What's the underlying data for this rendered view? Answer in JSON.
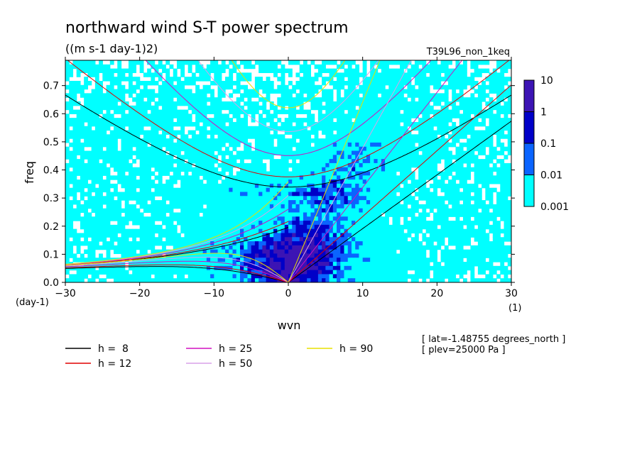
{
  "chart_data": {
    "type": "heatmap",
    "title": "northward wind S-T power spectrum",
    "units": "((m s-1 day-1)2)",
    "dataset": "T39L96_non_1keq",
    "xlabel": "wvn",
    "ylabel": "freq",
    "x_units": "(1)",
    "y_units": "(day-1)",
    "xlim": [
      -30,
      30
    ],
    "ylim": [
      0,
      0.79
    ],
    "x_ticks": [
      "-30",
      "-20",
      "-10",
      "0",
      "10",
      "20",
      "30"
    ],
    "y_ticks": [
      "0.0",
      "0.1",
      "0.2",
      "0.3",
      "0.4",
      "0.5",
      "0.6",
      "0.7"
    ],
    "colorbar": {
      "levels": [
        "0.001",
        "0.01",
        "0.1",
        "1",
        "10"
      ],
      "colors": [
        "#00ffff",
        "#0a64ff",
        "#0000c8",
        "#3c14b4"
      ],
      "below_min_color": "#ffffff"
    },
    "dispersion_curves": [
      {
        "label": "h =  8",
        "h": 8,
        "color": "#000000"
      },
      {
        "label": "h = 12",
        "h": 12,
        "color": "#e00000"
      },
      {
        "label": "h = 25",
        "h": 25,
        "color": "#d010c0"
      },
      {
        "label": "h = 50",
        "h": 50,
        "color": "#d8a0e8"
      },
      {
        "label": "h = 90",
        "h": 90,
        "color": "#e8e000"
      }
    ],
    "annotations": [
      "[ lat=-1.48755 degrees_north ]",
      "[ plev=25000 Pa ]"
    ]
  }
}
